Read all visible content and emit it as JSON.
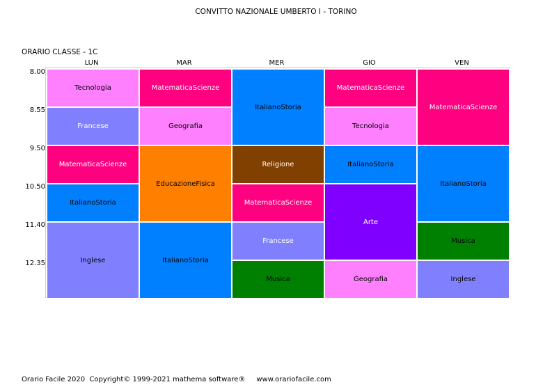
{
  "header": {
    "title": "CONVITTO NAZIONALE UMBERTO I - TORINO"
  },
  "class_label": "ORARIO CLASSE   -  1C",
  "days": [
    "LUN",
    "MAR",
    "MER",
    "GIO",
    "VEN"
  ],
  "times": [
    "8.00",
    "8.55",
    "9.50",
    "10.50",
    "11.40",
    "12.35"
  ],
  "subject_colors": {
    "Tecnologia": {
      "bg": "#ff80ff",
      "fg": "#000000"
    },
    "Francese": {
      "bg": "#8080ff",
      "fg": "#ffffff"
    },
    "MatematicaScienze": {
      "bg": "#ff0080",
      "fg": "#ffffff"
    },
    "ItalianoStoria": {
      "bg": "#0080ff",
      "fg": "#000000"
    },
    "Inglese": {
      "bg": "#8080ff",
      "fg": "#000000"
    },
    "Geografia": {
      "bg": "#ff80ff",
      "fg": "#000000"
    },
    "EducazioneFisica": {
      "bg": "#ff8000",
      "fg": "#000000"
    },
    "Religione": {
      "bg": "#804000",
      "fg": "#ffffff"
    },
    "Musica": {
      "bg": "#008000",
      "fg": "#000000"
    },
    "Arte": {
      "bg": "#8000ff",
      "fg": "#ffffff"
    }
  },
  "schedule": [
    {
      "day": 0,
      "start": 0,
      "span": 1,
      "subject": "Tecnologia"
    },
    {
      "day": 0,
      "start": 1,
      "span": 1,
      "subject": "Francese"
    },
    {
      "day": 0,
      "start": 2,
      "span": 1,
      "subject": "MatematicaScienze"
    },
    {
      "day": 0,
      "start": 3,
      "span": 1,
      "subject": "ItalianoStoria"
    },
    {
      "day": 0,
      "start": 4,
      "span": 2,
      "subject": "Inglese"
    },
    {
      "day": 1,
      "start": 0,
      "span": 1,
      "subject": "MatematicaScienze"
    },
    {
      "day": 1,
      "start": 1,
      "span": 1,
      "subject": "Geografia"
    },
    {
      "day": 1,
      "start": 2,
      "span": 2,
      "subject": "EducazioneFisica"
    },
    {
      "day": 1,
      "start": 4,
      "span": 2,
      "subject": "ItalianoStoria"
    },
    {
      "day": 2,
      "start": 0,
      "span": 2,
      "subject": "ItalianoStoria"
    },
    {
      "day": 2,
      "start": 2,
      "span": 1,
      "subject": "Religione"
    },
    {
      "day": 2,
      "start": 3,
      "span": 1,
      "subject": "MatematicaScienze"
    },
    {
      "day": 2,
      "start": 4,
      "span": 1,
      "subject": "Francese",
      "fg": "#ffffff"
    },
    {
      "day": 2,
      "start": 5,
      "span": 1,
      "subject": "Musica"
    },
    {
      "day": 3,
      "start": 0,
      "span": 1,
      "subject": "MatematicaScienze"
    },
    {
      "day": 3,
      "start": 1,
      "span": 1,
      "subject": "Tecnologia"
    },
    {
      "day": 3,
      "start": 2,
      "span": 1,
      "subject": "ItalianoStoria"
    },
    {
      "day": 3,
      "start": 3,
      "span": 2,
      "subject": "Arte"
    },
    {
      "day": 3,
      "start": 5,
      "span": 1,
      "subject": "Geografia"
    },
    {
      "day": 4,
      "start": 0,
      "span": 2,
      "subject": "MatematicaScienze"
    },
    {
      "day": 4,
      "start": 2,
      "span": 2,
      "subject": "ItalianoStoria"
    },
    {
      "day": 4,
      "start": 4,
      "span": 1,
      "subject": "Musica"
    },
    {
      "day": 4,
      "start": 5,
      "span": 1,
      "subject": "Inglese"
    }
  ],
  "footer": {
    "text": "Orario Facile 2020  Copyright© 1999-2021 mathema software®     www.orariofacile.com"
  }
}
